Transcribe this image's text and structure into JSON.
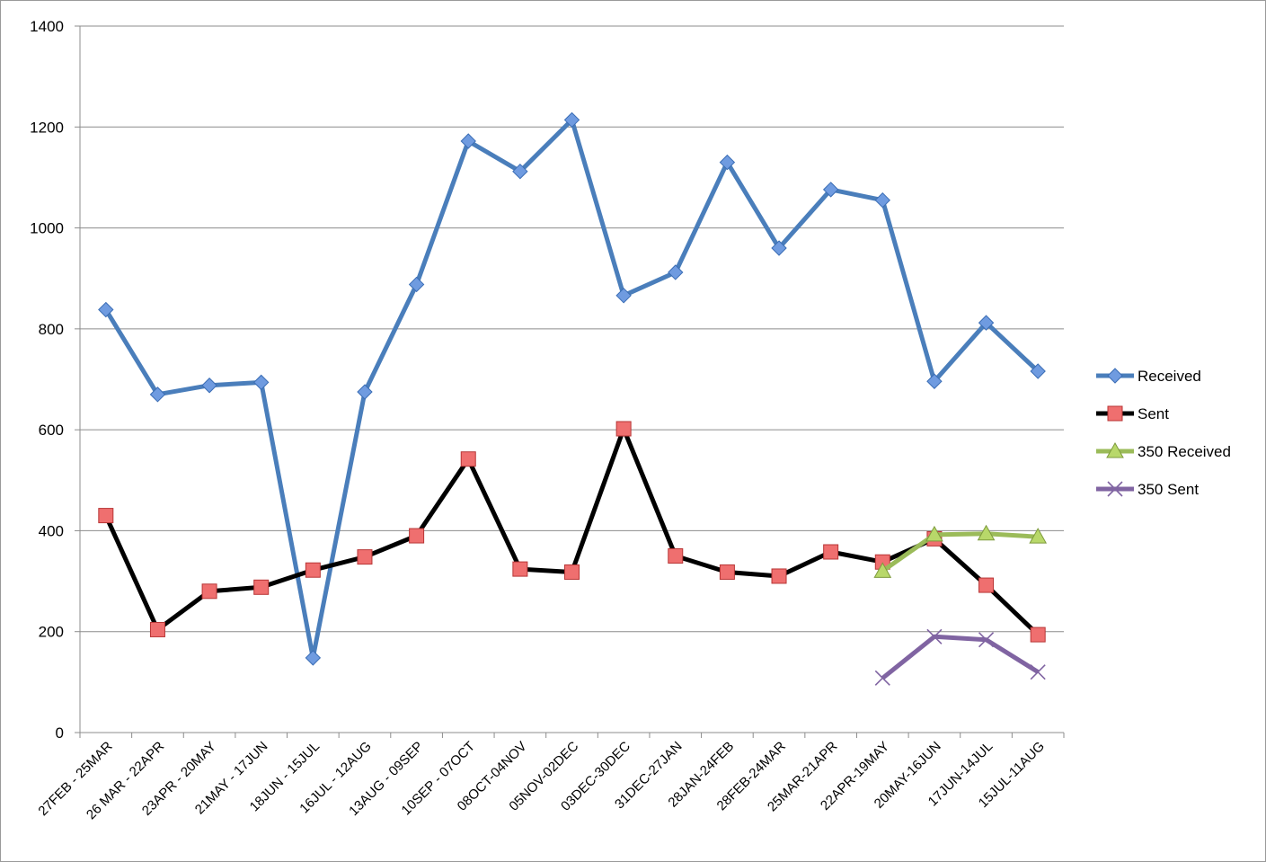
{
  "chart_data": {
    "type": "line",
    "title": "",
    "xlabel": "",
    "ylabel": "",
    "ylim": [
      0,
      1400
    ],
    "yticks": [
      0,
      200,
      400,
      600,
      800,
      1000,
      1200,
      1400
    ],
    "grid": "horizontal",
    "legend_position": "right",
    "categories": [
      "27FEB - 25MAR",
      "26 MAR - 22APR",
      "23APR - 20MAY",
      "21MAY - 17JUN",
      "18JUN - 15JUL",
      "16JUL - 12AUG",
      "13AUG - 09SEP",
      "10SEP - 07OCT",
      "08OCT-04NOV",
      "05NOV-02DEC",
      "03DEC-30DEC",
      "31DEC-27JAN",
      "28JAN-24FEB",
      "28FEB-24MAR",
      "25MAR-21APR",
      "22APR-19MAY",
      "20MAY-16JUN",
      "17JUN-14JUL",
      "15JUL-11AUG"
    ],
    "series": [
      {
        "name": "Received",
        "color": "#4a7ebb",
        "marker": "diamond",
        "values": [
          838,
          670,
          688,
          694,
          148,
          675,
          888,
          1172,
          1112,
          1214,
          866,
          912,
          1130,
          960,
          1076,
          1055,
          696,
          812,
          716
        ]
      },
      {
        "name": "Sent",
        "color": "#000000",
        "marker": "square",
        "values": [
          430,
          204,
          280,
          288,
          322,
          348,
          390,
          542,
          324,
          318,
          602,
          350,
          318,
          310,
          358,
          338,
          384,
          292,
          194
        ]
      },
      {
        "name": "350 Received",
        "color": "#9bbb59",
        "marker": "triangle",
        "values": [
          null,
          null,
          null,
          null,
          null,
          null,
          null,
          null,
          null,
          null,
          null,
          null,
          null,
          null,
          null,
          320,
          392,
          394,
          388
        ]
      },
      {
        "name": "350 Sent",
        "color": "#8064a2",
        "marker": "x",
        "values": [
          null,
          null,
          null,
          null,
          null,
          null,
          null,
          null,
          null,
          null,
          null,
          null,
          null,
          null,
          null,
          108,
          190,
          184,
          120
        ]
      }
    ]
  }
}
